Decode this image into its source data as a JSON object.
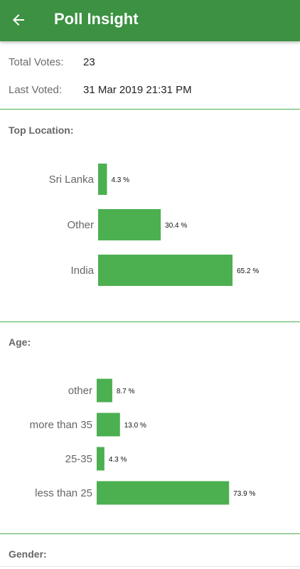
{
  "app_bar": {
    "title": "Poll Insight",
    "back_icon": "arrow-back-icon"
  },
  "summary": {
    "total_votes_label": "Total Votes:",
    "total_votes_value": "23",
    "last_voted_label": "Last Voted:",
    "last_voted_value": "31 Mar 2019 21:31 PM"
  },
  "sections": {
    "location_title": "Top Location:",
    "age_title": "Age:",
    "gender_title": "Gender:"
  },
  "colors": {
    "app_bar": "#3c9142",
    "bar": "#4caf50",
    "divider": "#4caf50"
  },
  "chart_data": [
    {
      "type": "bar",
      "orientation": "horizontal",
      "title": "Top Location:",
      "categories": [
        "Sri Lanka",
        "Other",
        "India"
      ],
      "values": [
        4.3,
        30.4,
        65.2
      ],
      "value_labels": [
        "4.3 %",
        "30.4 %",
        "65.2 %"
      ],
      "unit": "%"
    },
    {
      "type": "bar",
      "orientation": "horizontal",
      "title": "Age:",
      "categories": [
        "other",
        "more than 35",
        "25-35",
        "less than 25"
      ],
      "values": [
        8.7,
        13.0,
        4.3,
        73.9
      ],
      "value_labels": [
        "8.7 %",
        "13.0 %",
        "4.3 %",
        "73.9 %"
      ],
      "unit": "%"
    }
  ]
}
